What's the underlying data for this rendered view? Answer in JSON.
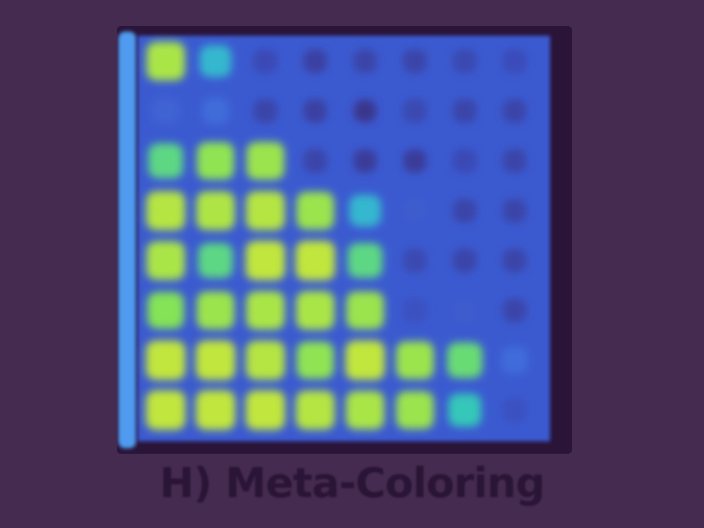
{
  "caption": "H) Meta-Coloring",
  "colors": {
    "background": "#452b4f",
    "frame": "#2a1438",
    "caption": "#2a1536",
    "colormap": [
      "#3a2a78",
      "#3b55c9",
      "#4a8ff0",
      "#2ec4c4",
      "#7de35a",
      "#c8e63a"
    ]
  },
  "chart_data": {
    "type": "heatmap",
    "title": "",
    "xlabel": "",
    "ylabel": "",
    "grid": false,
    "legend": "none",
    "rows": 8,
    "cols": 8,
    "vmin": 0,
    "vmax": 1,
    "values": [
      [
        0.92,
        0.55,
        0.15,
        0.1,
        0.12,
        0.12,
        0.14,
        0.16
      ],
      [
        0.25,
        0.28,
        0.12,
        0.1,
        0.05,
        0.14,
        0.12,
        0.12
      ],
      [
        0.72,
        0.85,
        0.88,
        0.12,
        0.08,
        0.08,
        0.15,
        0.12
      ],
      [
        0.95,
        0.93,
        0.95,
        0.88,
        0.55,
        0.22,
        0.12,
        0.12
      ],
      [
        0.92,
        0.72,
        0.98,
        0.98,
        0.72,
        0.14,
        0.12,
        0.12
      ],
      [
        0.82,
        0.88,
        0.92,
        0.92,
        0.88,
        0.18,
        0.22,
        0.12
      ],
      [
        0.98,
        0.98,
        0.95,
        0.85,
        0.98,
        0.88,
        0.75,
        0.28
      ],
      [
        0.98,
        0.98,
        0.98,
        0.95,
        0.92,
        0.88,
        0.62,
        0.18
      ]
    ]
  }
}
